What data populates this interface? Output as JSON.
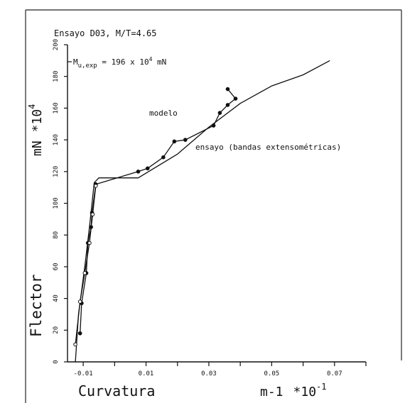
{
  "chart_data": {
    "type": "line",
    "title": "Ensayo D03,   M/T=4.65",
    "annotation": {
      "label": "M",
      "subscript": "u,exp",
      "value_text": " = 196 x 10",
      "value_superscript": "4",
      "unit": " mN"
    },
    "xlabel": {
      "left": "Curvatura",
      "right": "m-1",
      "multiplier": "*10",
      "exponent": "-1"
    },
    "ylabel": {
      "name": "Flector",
      "unit": "mN",
      "multiplier": "*10",
      "exponent": "4"
    },
    "xlim": [
      -0.015,
      0.08
    ],
    "ylim": [
      0,
      200
    ],
    "x_ticks": [
      {
        "value": -0.01,
        "label": "-0.01"
      },
      {
        "value": 0.01,
        "label": "0.01"
      },
      {
        "value": 0.03,
        "label": "0.03"
      },
      {
        "value": 0.05,
        "label": "0.05"
      },
      {
        "value": 0.07,
        "label": "0.07"
      }
    ],
    "x_minor_ticks": [
      0,
      0.02,
      0.04,
      0.06,
      0.08
    ],
    "y_ticks": [
      {
        "value": 0,
        "label": "0"
      },
      {
        "value": 20,
        "label": "20"
      },
      {
        "value": 40,
        "label": "40"
      },
      {
        "value": 60,
        "label": "60"
      },
      {
        "value": 80,
        "label": "80"
      },
      {
        "value": 100,
        "label": "100"
      },
      {
        "value": 120,
        "label": "120"
      },
      {
        "value": 140,
        "label": "140"
      },
      {
        "value": 160,
        "label": "160"
      },
      {
        "value": 180,
        "label": "180"
      },
      {
        "value": 200,
        "label": "200"
      }
    ],
    "series": [
      {
        "name": "modelo",
        "markers": "none",
        "x": [
          -0.0125,
          -0.0115,
          -0.0095,
          -0.008,
          -0.0065,
          -0.005,
          0.0,
          0.0075,
          0.02,
          0.03,
          0.04,
          0.05,
          0.06,
          0.0685
        ],
        "y": [
          0,
          30,
          60,
          85,
          113,
          116,
          116,
          116,
          131,
          148,
          163,
          174,
          181,
          190
        ]
      },
      {
        "name": "ensayo (bandas extensométricas)",
        "markers": "filled",
        "x": [
          -0.011,
          -0.0105,
          -0.009,
          -0.0085,
          -0.0075,
          -0.0072,
          -0.006,
          0.0075,
          0.0105,
          0.0155,
          0.019,
          0.0225,
          0.0315,
          0.0335,
          0.036,
          0.0385,
          0.036
        ],
        "y": [
          18,
          37,
          56,
          75,
          85,
          94,
          112,
          120,
          122,
          129,
          139,
          140,
          149,
          157,
          162,
          166,
          172
        ]
      },
      {
        "name": "",
        "markers": "open",
        "x": [
          -0.0125,
          -0.011,
          -0.0095,
          -0.008,
          -0.007,
          -0.006
        ],
        "y": [
          11,
          38,
          56,
          75,
          93,
          111
        ]
      }
    ]
  }
}
